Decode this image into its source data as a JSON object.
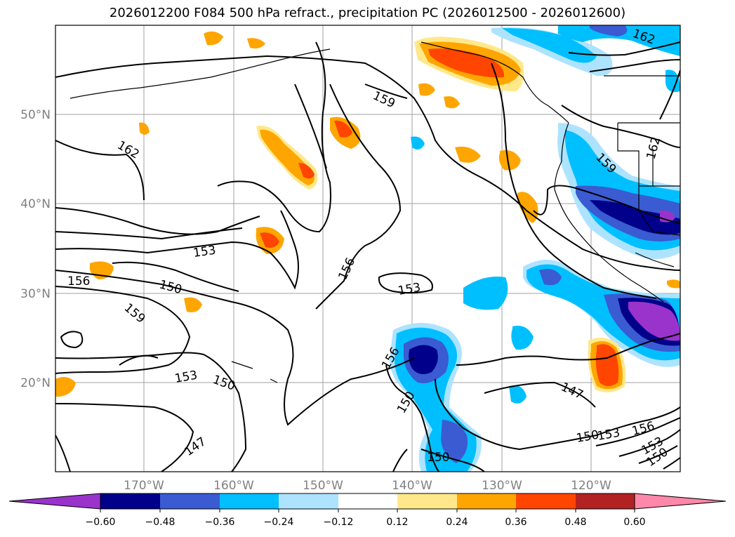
{
  "title": "2026012200 F084 500 hPa refract., precipitation PC (2026012500 - 2026012600)",
  "lat_labels": [
    "50°N",
    "40°N",
    "30°N",
    "20°N"
  ],
  "lon_labels": [
    "170°W",
    "160°W",
    "150°W",
    "140°W",
    "130°W",
    "120°W"
  ],
  "contour_labels": [
    "162",
    "159",
    "162",
    "156",
    "153",
    "150",
    "159",
    "156",
    "153",
    "153",
    "150",
    "147",
    "159",
    "162",
    "156",
    "150",
    "150",
    "147",
    "150",
    "153",
    "156",
    "153",
    "150"
  ],
  "colorbar": {
    "ticks": [
      "−0.60",
      "−0.48",
      "−0.36",
      "−0.24",
      "−0.12",
      "0.12",
      "0.24",
      "0.36",
      "0.48",
      "0.60"
    ],
    "colors": [
      "#9933cc",
      "#00008b",
      "#3a5bd1",
      "#00bfff",
      "#ade3ff",
      "#ffffff",
      "#ffe88a",
      "#ffa500",
      "#ff4500",
      "#b22222",
      "#ff88aa"
    ]
  }
}
